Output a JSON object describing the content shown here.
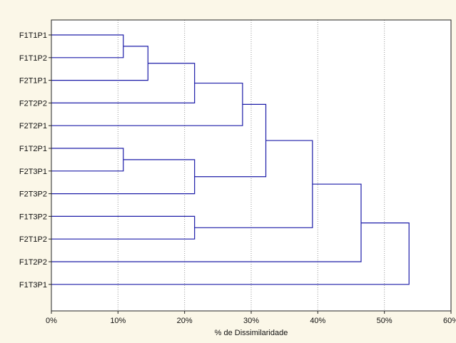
{
  "chart_data": {
    "type": "dendrogram",
    "xlabel": "% de Dissimilaridade",
    "xlim": [
      0,
      60
    ],
    "x_ticks": [
      "0%",
      "10%",
      "20%",
      "30%",
      "40%",
      "50%",
      "60%"
    ],
    "x_tick_values": [
      0,
      10,
      20,
      30,
      40,
      50,
      60
    ],
    "grid": "vertical dotted",
    "leaves": [
      "F1T1P1",
      "F1T1P2",
      "F2T1P1",
      "F2T2P2",
      "F2T2P1",
      "F1T2P1",
      "F2T3P1",
      "F2T3P2",
      "F1T3P2",
      "F2T1P2",
      "F1T2P2",
      "F1T3P1"
    ],
    "merges": [
      {
        "a": "F1T1P1",
        "b": "F1T1P2",
        "height": 10.8
      },
      {
        "a": "F1T2P1",
        "b": "F2T3P1",
        "height": 10.8
      },
      {
        "a": "(F1T1P1,F1T1P2)",
        "b": "F2T1P1",
        "height": 14.5
      },
      {
        "a": "(F1T1P1,F1T1P2,F2T1P1)",
        "b": "F2T2P2",
        "height": 21.5
      },
      {
        "a": "(F1T2P1,F2T3P1)",
        "b": "F2T3P2",
        "height": 21.5
      },
      {
        "a": "F1T3P2",
        "b": "F2T1P2",
        "height": 21.5
      },
      {
        "a": "(F1T1P1..F2T2P2)",
        "b": "F2T2P1",
        "height": 28.7
      },
      {
        "a": "(F1T1P1..F2T2P1)",
        "b": "(F1T2P1,F2T3P1,F2T3P2)",
        "height": 32.2
      },
      {
        "a": "(F1T1P1..F2T3P2)",
        "b": "(F1T3P2,F2T1P2)",
        "height": 39.2
      },
      {
        "a": "(F1T1P1..F2T1P2)",
        "b": "F1T2P2",
        "height": 46.5
      },
      {
        "a": "(F1T1P1..F1T2P2)",
        "b": "F1T3P1",
        "height": 53.7
      }
    ],
    "colors": {
      "link": "#1c1ca8",
      "grid": "#9a9a9a",
      "frame": "#222222",
      "background": "#fbf7e8",
      "plot_background": "#ffffff"
    }
  }
}
